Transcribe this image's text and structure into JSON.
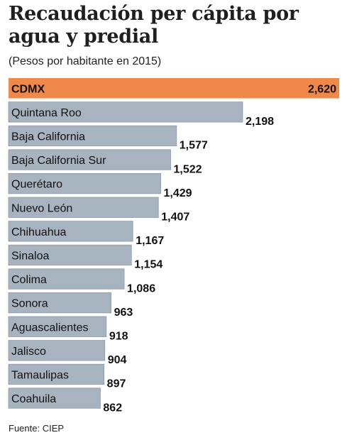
{
  "header": {
    "title_line1": "Recaudación per cápita por",
    "title_line2": "agua y predial",
    "subtitle": "(Pesos por habitante en 2015)"
  },
  "footer": {
    "source": "Fuente: CIEP"
  },
  "colors": {
    "highlight_bar": "#f0884a",
    "bar": "#a7b4bf",
    "bar_stroke": "#8f9ca8"
  },
  "chart_data": {
    "type": "bar",
    "orientation": "horizontal",
    "categories": [
      "CDMX",
      "Quintana Roo",
      "Baja California",
      "Baja California Sur",
      "Querétaro",
      "Nuevo León",
      "Chihuahua",
      "Sinaloa",
      "Colima",
      "Sonora",
      "Aguascalientes",
      "Jalisco",
      "Tamaulipas",
      "Coahuila"
    ],
    "values": [
      2620,
      2198,
      1577,
      1522,
      1429,
      1407,
      1167,
      1154,
      1086,
      963,
      918,
      904,
      897,
      862
    ],
    "value_labels": [
      "2,620",
      "2,198",
      "1,577",
      "1,522",
      "1,429",
      "1,407",
      "1,167",
      "1,154",
      "1,086",
      "963",
      "918",
      "904",
      "897",
      "862"
    ],
    "highlight": "CDMX",
    "title": "Recaudación per cápita por agua y predial",
    "subtitle": "(Pesos por habitante en 2015)",
    "xlabel": "",
    "ylabel": ""
  }
}
